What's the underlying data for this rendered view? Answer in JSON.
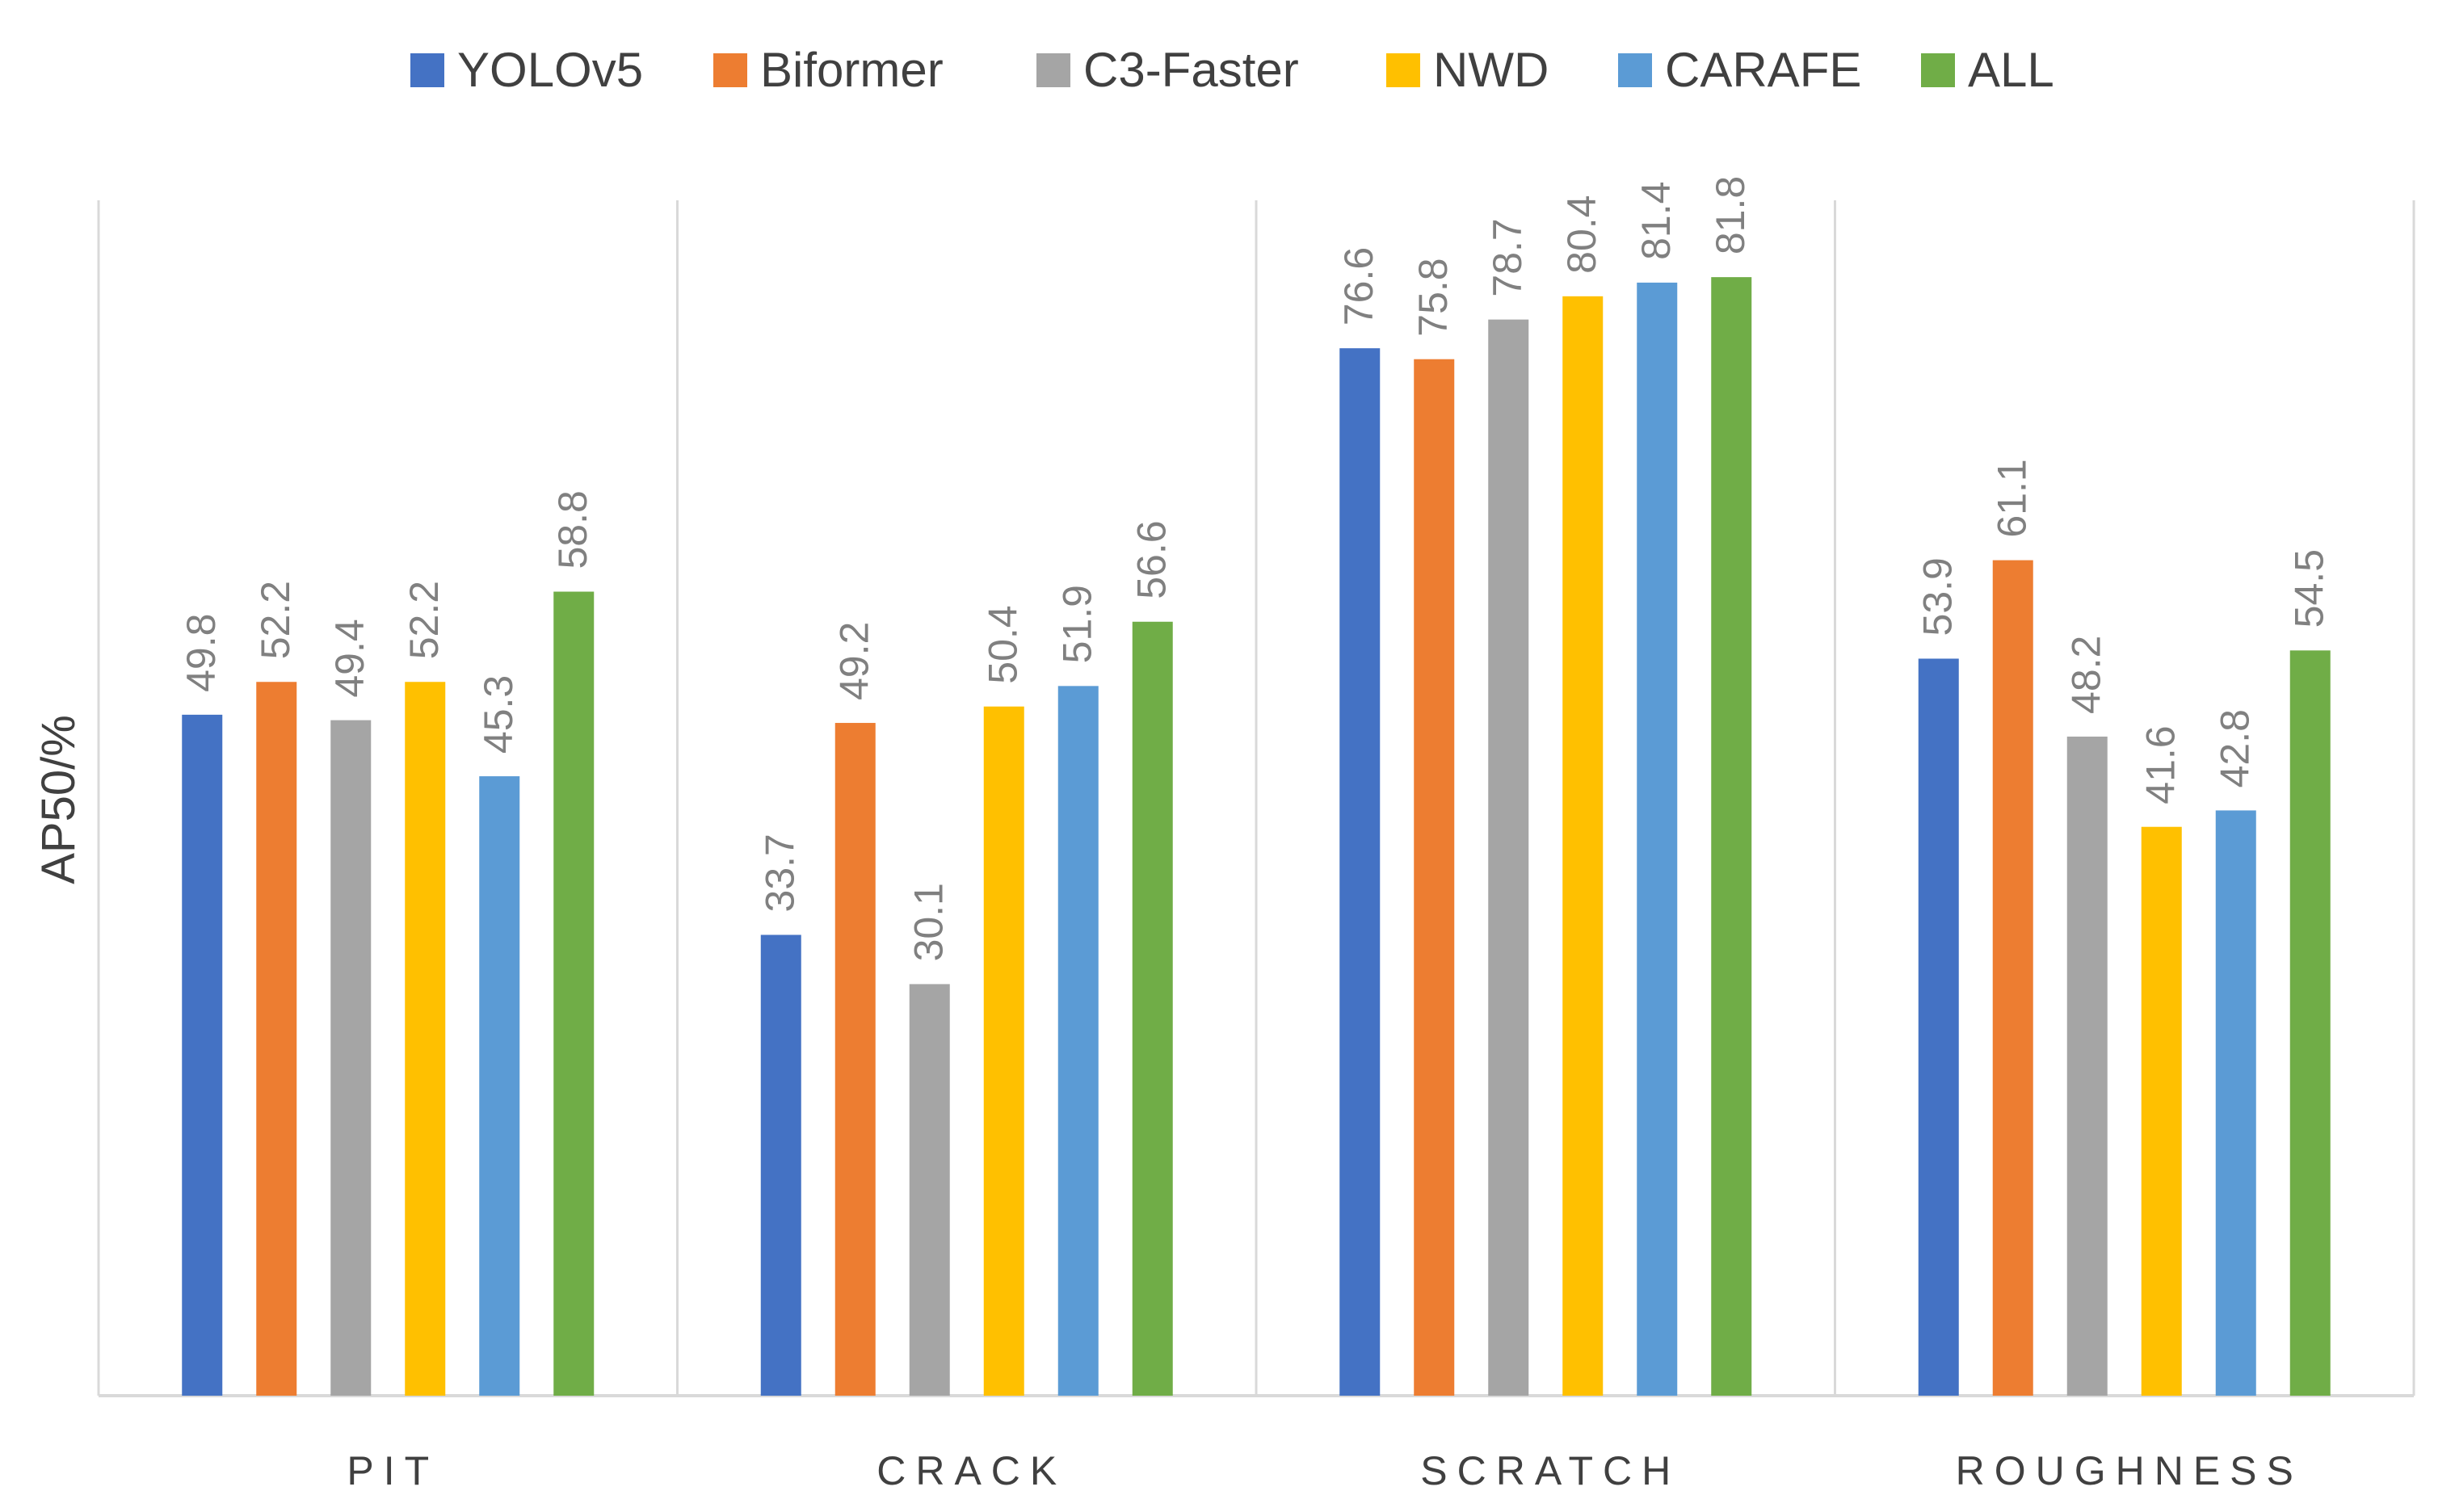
{
  "chart_data": {
    "type": "bar",
    "title": "",
    "xlabel": "",
    "ylabel": "AP50/%",
    "ylim": [
      0,
      90
    ],
    "categories": [
      "PIT",
      "CRACK",
      "SCRATCH",
      "ROUGHNESS"
    ],
    "legend_position": "top",
    "series": [
      {
        "name": "YOLOv5",
        "color": "#4472C4",
        "values": [
          49.8,
          33.7,
          76.6,
          53.9
        ]
      },
      {
        "name": "Biformer",
        "color": "#ED7D31",
        "values": [
          52.2,
          49.2,
          75.8,
          61.1
        ]
      },
      {
        "name": "C3-Faster",
        "color": "#A5A5A5",
        "values": [
          49.4,
          30.1,
          78.7,
          48.2
        ]
      },
      {
        "name": "NWD",
        "color": "#FFC000",
        "values": [
          52.2,
          50.4,
          80.4,
          41.6
        ]
      },
      {
        "name": "CARAFE",
        "color": "#5B9BD5",
        "values": [
          45.3,
          51.9,
          81.4,
          42.8
        ]
      },
      {
        "name": "ALL",
        "color": "#70AD47",
        "values": [
          58.8,
          56.6,
          81.8,
          54.5
        ]
      }
    ]
  }
}
